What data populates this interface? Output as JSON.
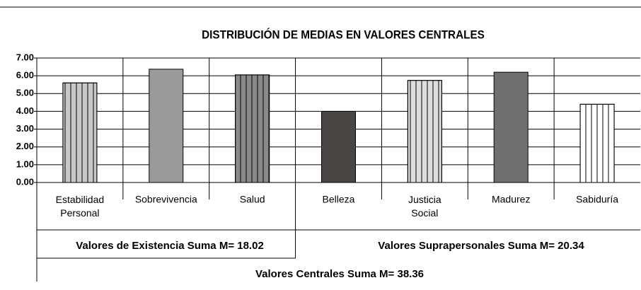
{
  "chart_data": {
    "type": "bar",
    "title": "DISTRIBUCIÓN DE MEDIAS EN VALORES CENTRALES",
    "categories": [
      "Estabilidad Personal",
      "Sobrevivencia",
      "Salud",
      "Belleza",
      "Justicia Social",
      "Madurez",
      "Sabiduría"
    ],
    "values": [
      5.6,
      6.37,
      6.05,
      4.0,
      5.74,
      6.2,
      4.4
    ],
    "colors": [
      "#c8c8c8",
      "#9a9a9a",
      "#8a8a8a",
      "#4a4545",
      "#dedede",
      "#707070",
      "#ffffff"
    ],
    "striped": [
      true,
      false,
      true,
      false,
      true,
      false,
      true
    ],
    "ylim": [
      0,
      7
    ],
    "yticks": [
      {
        "value": 0,
        "label": "0.00"
      },
      {
        "value": 1,
        "label": "1.00"
      },
      {
        "value": 2,
        "label": "2.00"
      },
      {
        "value": 3,
        "label": "3.00"
      },
      {
        "value": 4,
        "label": "4.00"
      },
      {
        "value": 5,
        "label": "5.00"
      },
      {
        "value": 6,
        "label": "6.00"
      },
      {
        "value": 7,
        "label": "7.00"
      }
    ],
    "grid": true,
    "annotations": [
      "Valores de Existencia Suma M= 18.02",
      "Valores Suprapersonales Suma M= 20.34",
      "Valores Centrales Suma M= 38.36"
    ]
  }
}
